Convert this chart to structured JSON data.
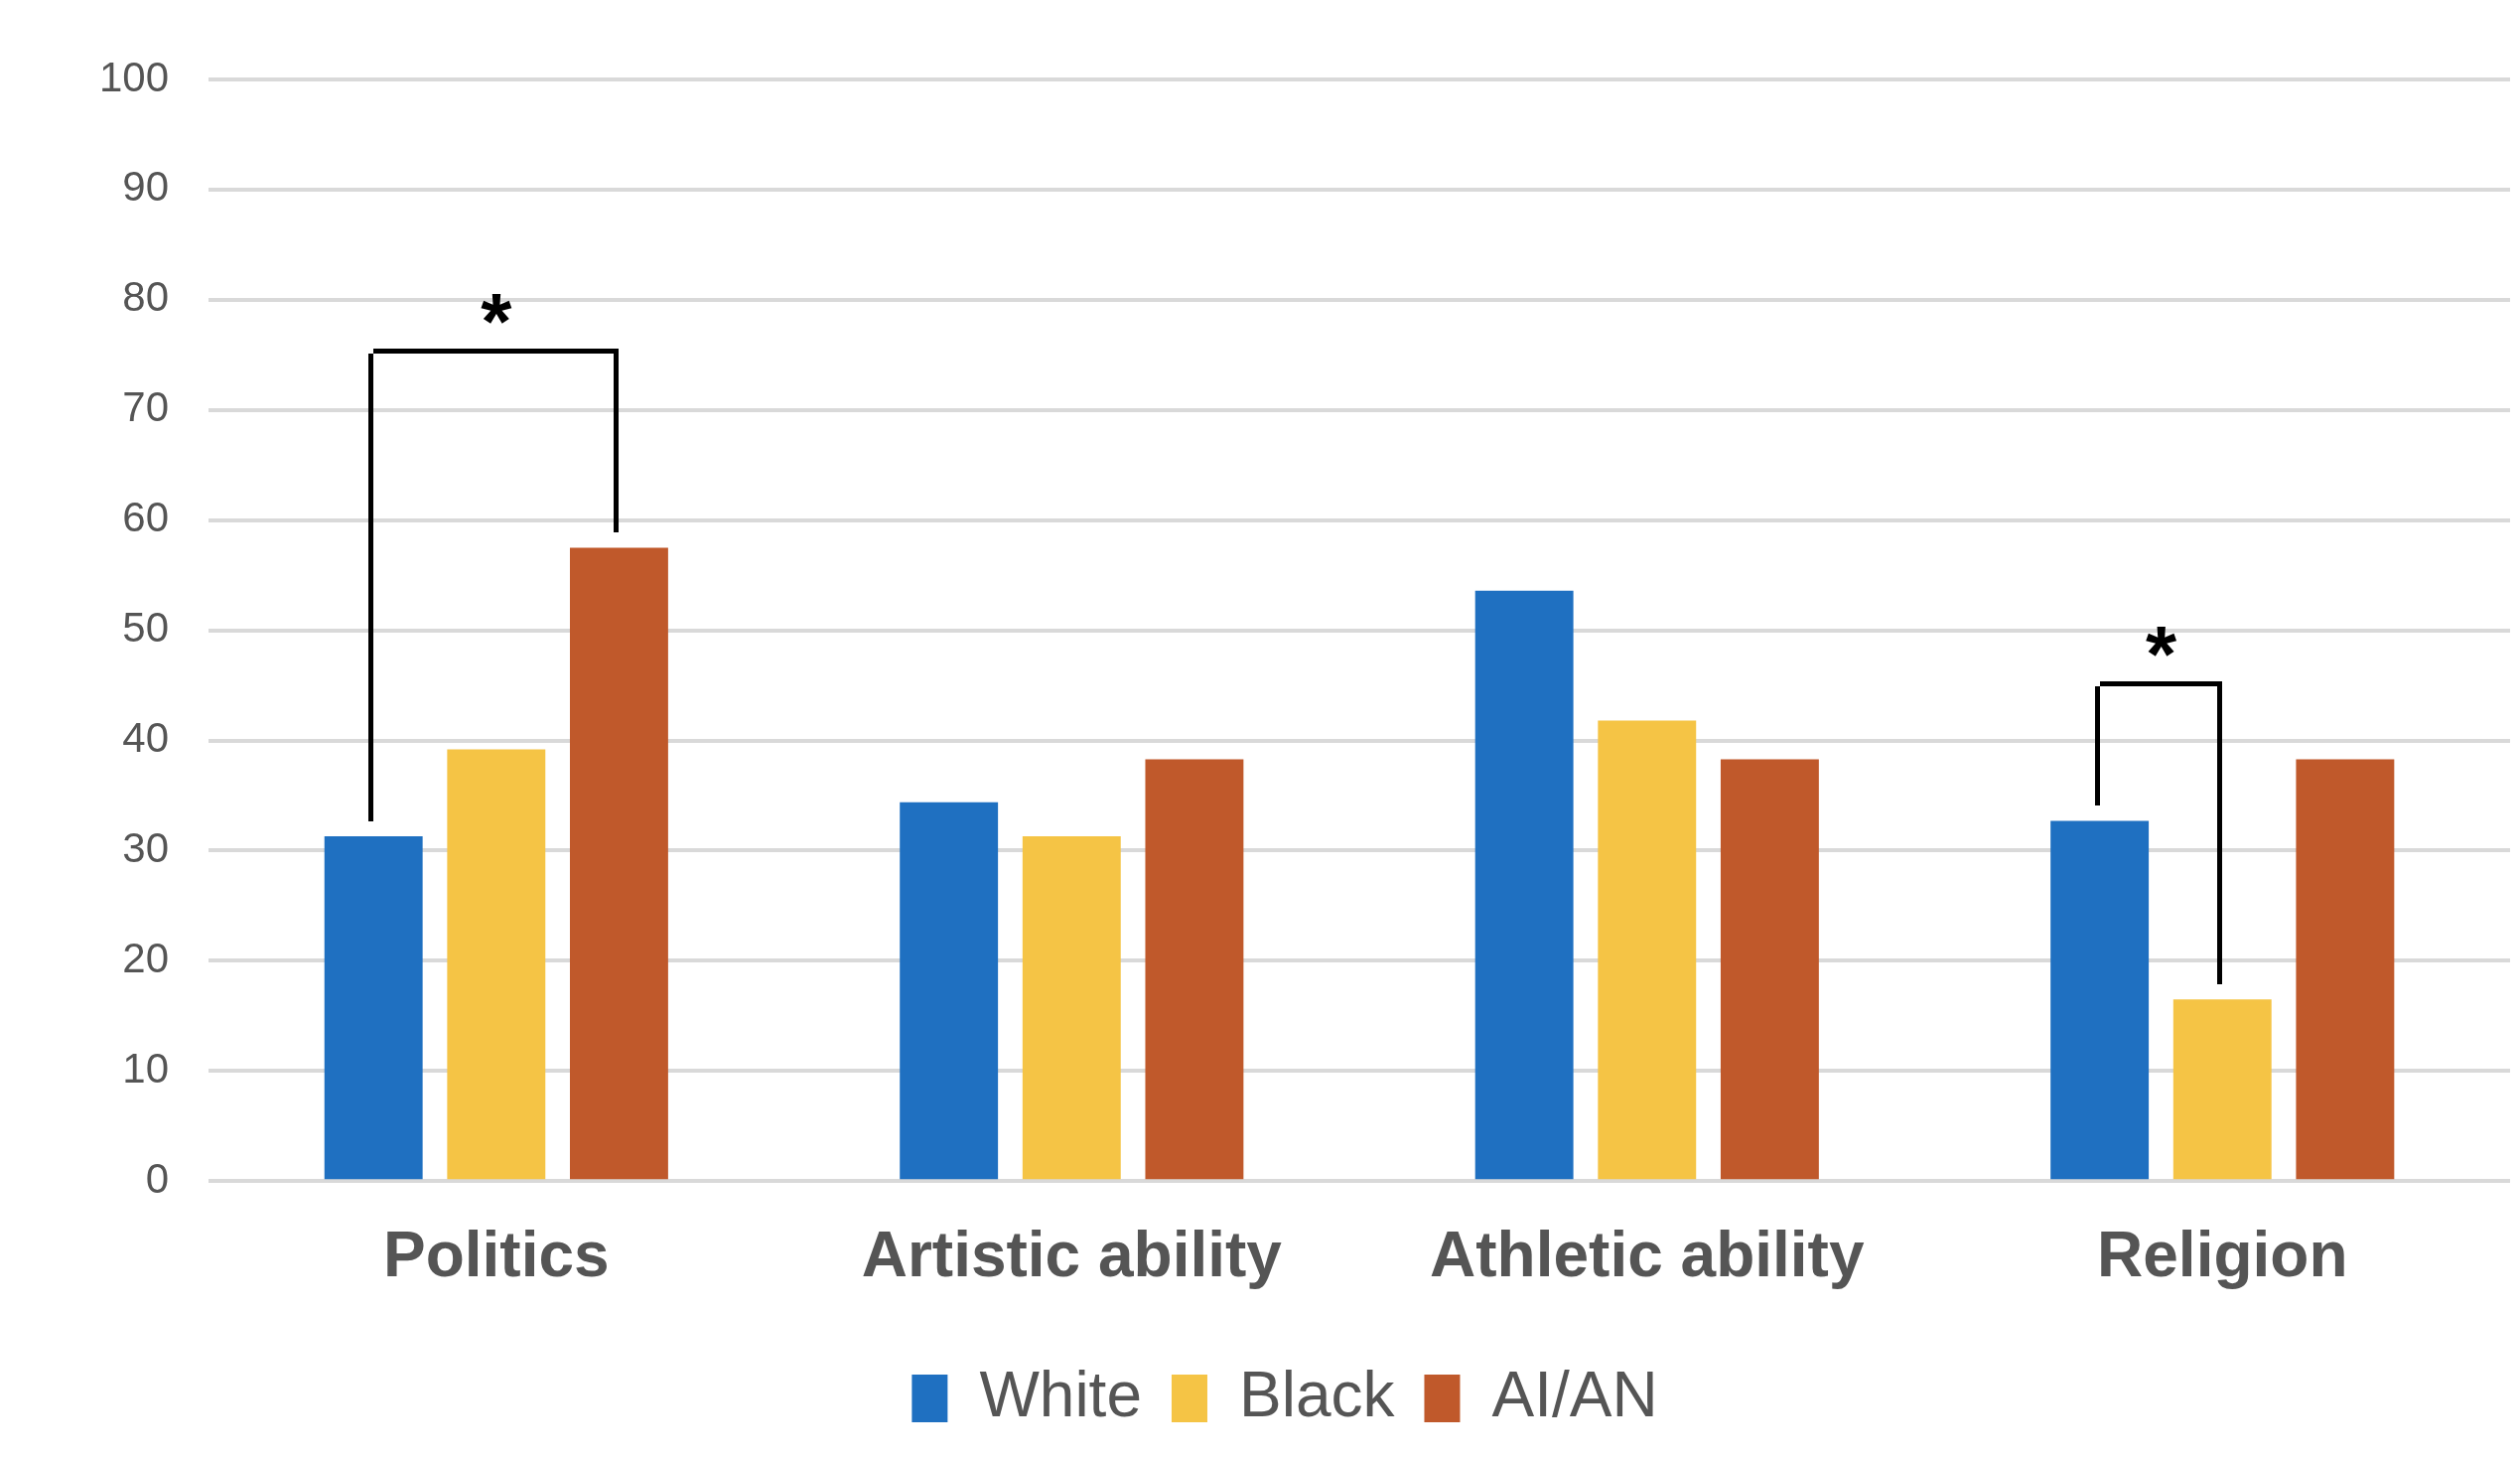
{
  "chart_data": {
    "type": "bar",
    "categories": [
      "Politics",
      "Artistic ability",
      "Athletic ability",
      "Religion"
    ],
    "series": [
      {
        "name": "White",
        "color": "#1f70c1",
        "values": [
          31.3,
          34.4,
          53.6,
          32.7
        ]
      },
      {
        "name": "Black",
        "color": "#f5c445",
        "values": [
          39.2,
          31.3,
          41.8,
          16.5
        ]
      },
      {
        "name": "AI/AN",
        "color": "#c0592b",
        "values": [
          57.5,
          38.3,
          38.3,
          38.3
        ]
      }
    ],
    "ylim": [
      0,
      100
    ],
    "yticks": [
      0,
      10,
      20,
      30,
      40,
      50,
      60,
      70,
      80,
      90,
      100
    ],
    "grid": "y",
    "legend": "bottom",
    "annotations": [
      "*",
      "*"
    ]
  }
}
